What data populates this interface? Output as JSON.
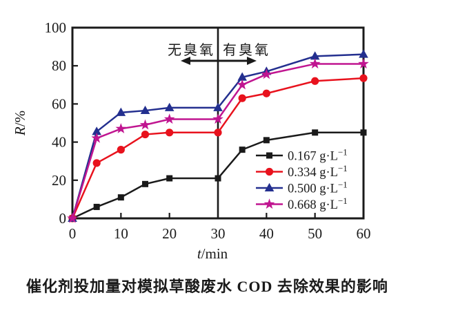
{
  "chart_data": {
    "type": "line",
    "title": "",
    "xlabel": "t/min",
    "ylabel": "R/%",
    "xlim": [
      0,
      60
    ],
    "ylim": [
      0,
      100
    ],
    "x_ticks": [
      0,
      10,
      20,
      30,
      40,
      50,
      60
    ],
    "y_ticks": [
      0,
      20,
      40,
      60,
      80,
      100
    ],
    "grid": false,
    "x": [
      0,
      5,
      10,
      15,
      20,
      30,
      35,
      40,
      50,
      60
    ],
    "series": [
      {
        "name": "0.167 g·L⁻¹",
        "marker": "square",
        "color": "#1a1a1a",
        "values": [
          0,
          6,
          11,
          18,
          21,
          21,
          36,
          41,
          45,
          45
        ]
      },
      {
        "name": "0.334 g·L⁻¹",
        "marker": "circle",
        "color": "#e8121d",
        "values": [
          0,
          29,
          36,
          44,
          45,
          45,
          63,
          65.5,
          72,
          73.5
        ]
      },
      {
        "name": "0.500 g·L⁻¹",
        "marker": "triangle",
        "color": "#232f8f",
        "values": [
          0,
          45.5,
          55.5,
          56.5,
          58,
          58,
          74,
          77,
          85,
          86
        ]
      },
      {
        "name": "0.668 g·L⁻¹",
        "marker": "star",
        "color": "#c01590",
        "values": [
          0,
          42,
          47,
          49,
          52,
          52,
          70,
          75.5,
          81,
          81
        ]
      }
    ],
    "divider_x": 30,
    "annotations": {
      "left": "无臭氧",
      "right": "有臭氧"
    },
    "legend_position": "inside lower right",
    "axis_color": "#1a1a1a"
  },
  "caption": "催化剂投加量对模拟草酸废水 COD 去除效果的影响"
}
